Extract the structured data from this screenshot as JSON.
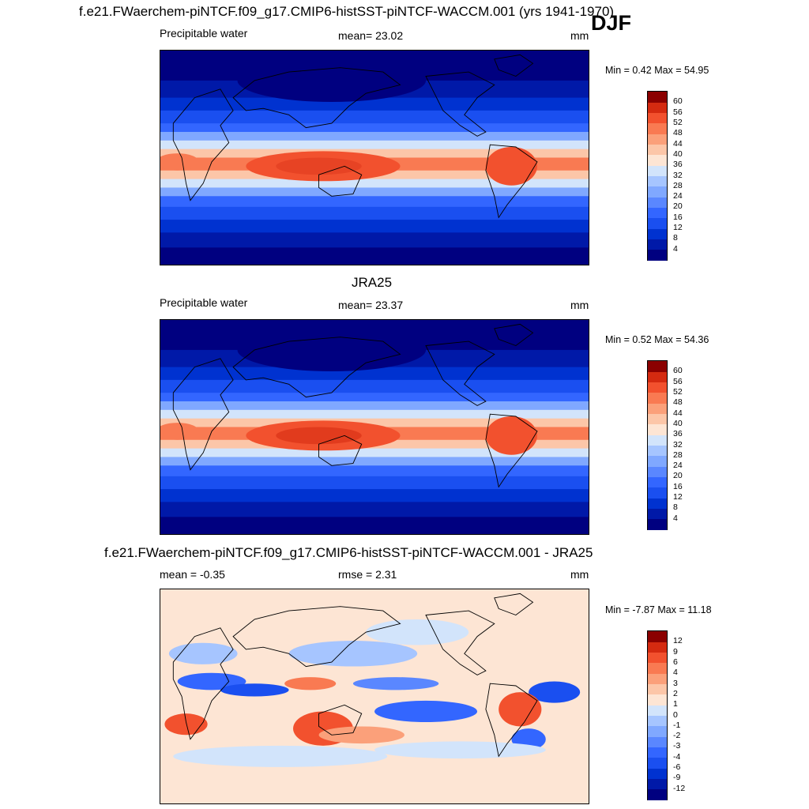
{
  "header": {
    "title1": "f.e21.FWaerchem-piNTCF.f09_g17.CMIP6-histSST-piNTCF-WACCM.001 (yrs 1941-1970)",
    "season": "DJF"
  },
  "panel1": {
    "left": "Precipitable water",
    "center": "mean=  23.02",
    "units": "mm",
    "minmax": "Min =   0.42 Max =  54.95"
  },
  "panel2": {
    "title": "JRA25",
    "left": "Precipitable water",
    "center": "mean=  23.37",
    "units": "mm",
    "minmax": "Min =   0.52 Max =  54.36"
  },
  "panel3": {
    "title": "f.e21.FWaerchem-piNTCF.f09_g17.CMIP6-histSST-piNTCF-WACCM.001 - JRA25",
    "left": "mean =  -0.35",
    "center": "rmse =   2.31",
    "units": "mm",
    "minmax": "Min =  -7.87 Max =  11.18"
  },
  "chart_data": [
    {
      "type": "heatmap",
      "title": "f.e21.FWaerchem-piNTCF.f09_g17.CMIP6-histSST-piNTCF-WACCM.001 (yrs 1941-1970)",
      "variable": "Precipitable water",
      "units": "mm",
      "mean": 23.02,
      "min": 0.42,
      "max": 54.95,
      "colorbar_levels": [
        4,
        8,
        12,
        16,
        20,
        24,
        28,
        32,
        36,
        40,
        44,
        48,
        52,
        56,
        60
      ],
      "colorbar_colors": [
        "#000080",
        "#0019a8",
        "#0032d0",
        "#1a4ff0",
        "#3366ff",
        "#5a87ff",
        "#80a8ff",
        "#a6c5ff",
        "#d2e4fb",
        "#fde5d4",
        "#fcc6a8",
        "#fba07a",
        "#f97a52",
        "#f2512e",
        "#d42a10",
        "#8b0000"
      ]
    },
    {
      "type": "heatmap",
      "title": "JRA25",
      "variable": "Precipitable water",
      "units": "mm",
      "mean": 23.37,
      "min": 0.52,
      "max": 54.36,
      "colorbar_levels": [
        4,
        8,
        12,
        16,
        20,
        24,
        28,
        32,
        36,
        40,
        44,
        48,
        52,
        56,
        60
      ],
      "colorbar_colors": [
        "#000080",
        "#0019a8",
        "#0032d0",
        "#1a4ff0",
        "#3366ff",
        "#5a87ff",
        "#80a8ff",
        "#a6c5ff",
        "#d2e4fb",
        "#fde5d4",
        "#fcc6a8",
        "#fba07a",
        "#f97a52",
        "#f2512e",
        "#d42a10",
        "#8b0000"
      ]
    },
    {
      "type": "heatmap",
      "title": "f.e21.FWaerchem-piNTCF.f09_g17.CMIP6-histSST-piNTCF-WACCM.001 - JRA25",
      "units": "mm",
      "mean": -0.35,
      "rmse": 2.31,
      "min": -7.87,
      "max": 11.18,
      "colorbar_levels": [
        -12,
        -9,
        -6,
        -4,
        -3,
        -2,
        -1,
        0,
        1,
        2,
        3,
        4,
        6,
        9,
        12
      ],
      "colorbar_colors": [
        "#000080",
        "#0019a8",
        "#0032d0",
        "#1a4ff0",
        "#3366ff",
        "#5a87ff",
        "#80a8ff",
        "#a6c5ff",
        "#d2e4fb",
        "#fde5d4",
        "#fcc6a8",
        "#fba07a",
        "#f97a52",
        "#f2512e",
        "#d42a10",
        "#8b0000"
      ]
    }
  ]
}
